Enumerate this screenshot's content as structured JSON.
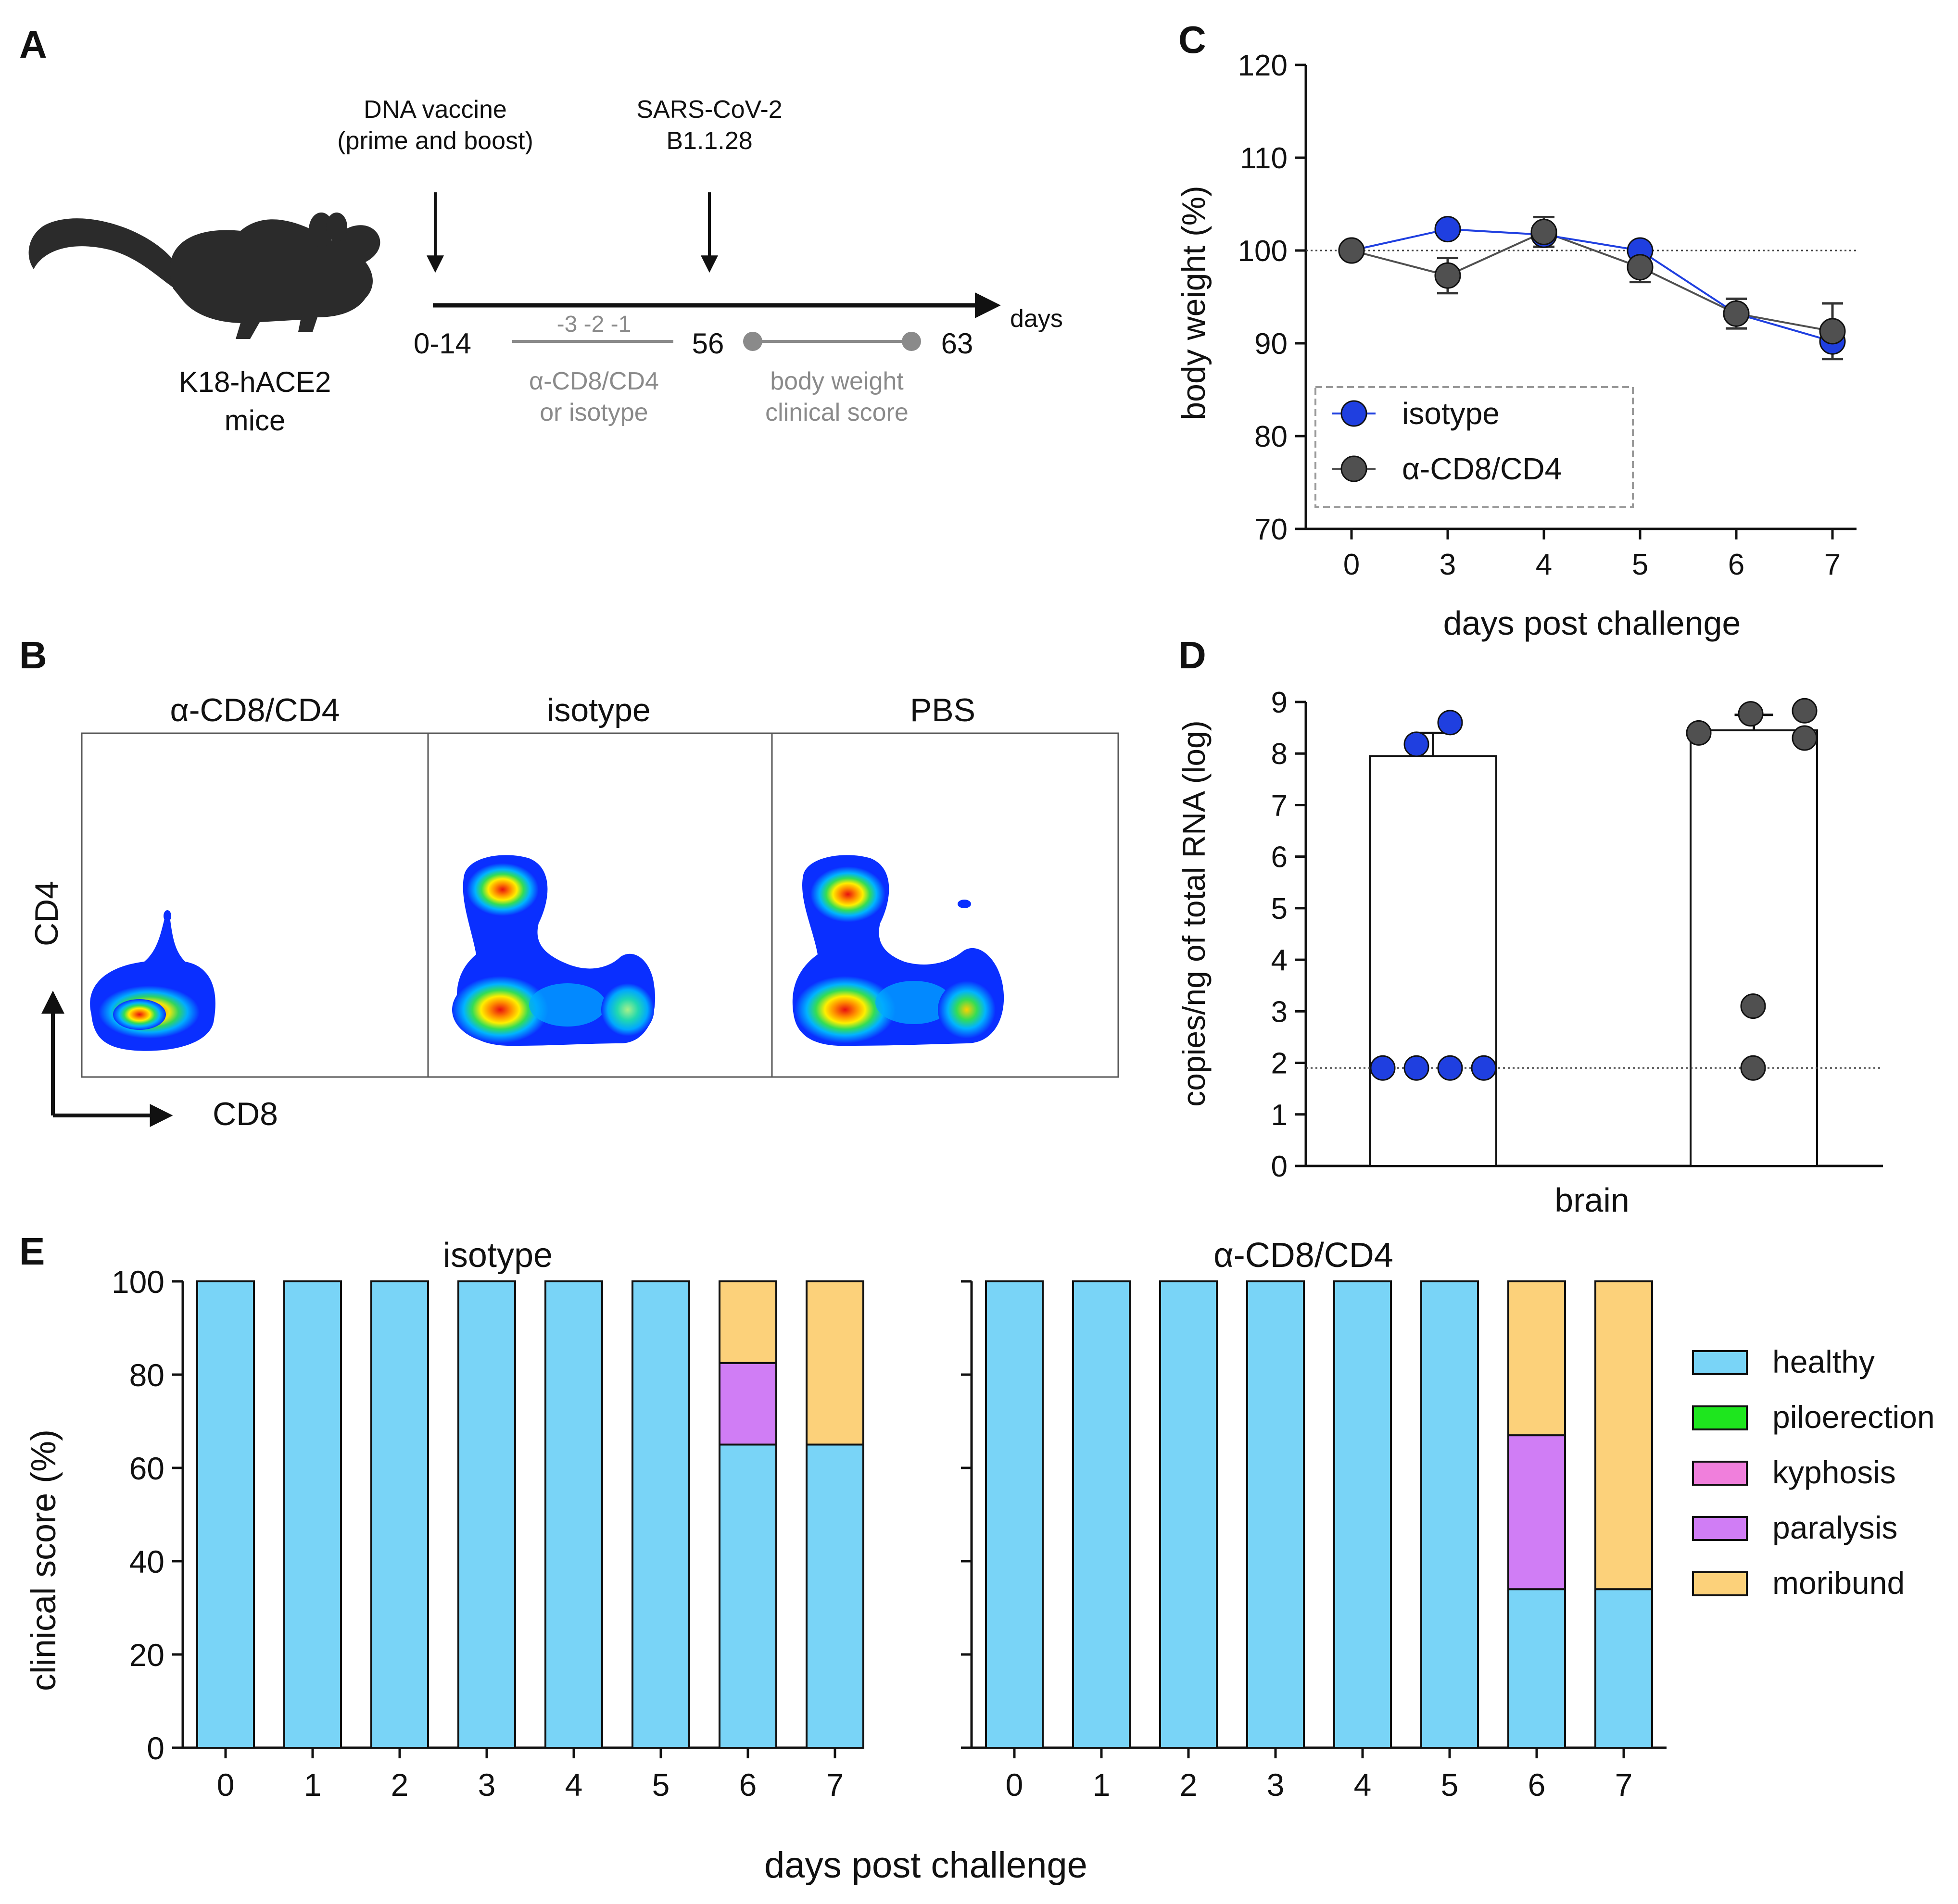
{
  "panel_labels": {
    "A": "A",
    "B": "B",
    "C": "C",
    "D": "D",
    "E": "E"
  },
  "colors": {
    "isotype": "#1f3fe0",
    "anti_cd8_cd4": "#505050",
    "healthy": "#79d4f7",
    "piloerection": "#1ee61e",
    "kyphosis": "#f07fdc",
    "paralysis": "#d07df5",
    "moribund": "#fcd17a",
    "timeline_gray": "#8a8a8a"
  },
  "panel_a": {
    "mouse_icon": "mouse-icon",
    "mouse_line1": "K18-hACE2",
    "mouse_line2": "mice",
    "vaccine_line1": "DNA vaccine",
    "vaccine_line2": "(prime and boost)",
    "challenge_line1": "SARS-CoV-2",
    "challenge_line2": "B1.1.28",
    "days_label": "days",
    "day_vaccine": "0-14",
    "day_challenge": "56",
    "day_end": "63",
    "depletion_days": "-3 -2 -1",
    "depletion_line1": "α-CD8/CD4",
    "depletion_line2": "or isotype",
    "monitor_line1": "body weight",
    "monitor_line2": "clinical score"
  },
  "panel_b": {
    "panels": [
      "α-CD8/CD4",
      "isotype",
      "PBS"
    ],
    "y_axis": "CD4",
    "x_axis": "CD8"
  },
  "chart_data": [
    {
      "id": "C",
      "type": "line",
      "title": "",
      "xlabel": "days post challenge",
      "ylabel": "body weight (%)",
      "categories": [
        "0",
        "3",
        "4",
        "5",
        "6",
        "7"
      ],
      "ylim": [
        70,
        120
      ],
      "yticks": [
        70,
        80,
        90,
        100,
        110,
        120
      ],
      "reference_line": 100,
      "legend": "top-left",
      "series": [
        {
          "name": "isotype",
          "color": "#1f3fe0",
          "values": [
            100,
            102.3,
            101.7,
            100.0,
            93.2,
            90.2
          ],
          "errors": [
            0,
            0,
            0,
            0,
            0,
            0
          ]
        },
        {
          "name": "α-CD8/CD4",
          "color": "#505050",
          "values": [
            100,
            97.3,
            102.0,
            98.2,
            93.2,
            91.3
          ],
          "errors": [
            0,
            1.9,
            1.6,
            1.6,
            1.6,
            3.0
          ]
        }
      ]
    },
    {
      "id": "D",
      "type": "bar",
      "xlabel": "brain",
      "ylabel": "copies/ng of total RNA (log)",
      "ylim": [
        0,
        9
      ],
      "yticks": [
        0,
        1,
        2,
        3,
        4,
        5,
        6,
        7,
        8,
        9
      ],
      "detection_limit": 1.9,
      "groups": [
        {
          "name": "isotype",
          "color": "#1f3fe0",
          "mean": 7.95,
          "error": 0.45,
          "points": [
            8.18,
            8.6,
            1.9,
            1.9,
            1.9,
            1.9
          ]
        },
        {
          "name": "α-CD8/CD4",
          "color": "#505050",
          "mean": 8.45,
          "error": 0.3,
          "points": [
            8.4,
            8.77,
            8.83,
            8.3,
            3.1,
            1.9
          ]
        }
      ]
    },
    {
      "id": "E",
      "type": "bar",
      "stacked": true,
      "xlabel": "days post challenge",
      "ylabel": "clinical score (%)",
      "ylim": [
        0,
        100
      ],
      "yticks": [
        0,
        20,
        40,
        60,
        80,
        100
      ],
      "legend": "right",
      "legend_entries": [
        "healthy",
        "piloerection",
        "kyphosis",
        "paralysis",
        "moribund"
      ],
      "categories": [
        "0",
        "1",
        "2",
        "3",
        "4",
        "5",
        "6",
        "7"
      ],
      "panels": [
        {
          "title": "isotype",
          "series": [
            {
              "name": "healthy",
              "values": [
                100,
                100,
                100,
                100,
                100,
                100,
                65,
                65
              ]
            },
            {
              "name": "piloerection",
              "values": [
                0,
                0,
                0,
                0,
                0,
                0,
                0,
                0
              ]
            },
            {
              "name": "kyphosis",
              "values": [
                0,
                0,
                0,
                0,
                0,
                0,
                0,
                0
              ]
            },
            {
              "name": "paralysis",
              "values": [
                0,
                0,
                0,
                0,
                0,
                0,
                17.5,
                0
              ]
            },
            {
              "name": "moribund",
              "values": [
                0,
                0,
                0,
                0,
                0,
                0,
                17.5,
                35
              ]
            }
          ]
        },
        {
          "title": "α-CD8/CD4",
          "series": [
            {
              "name": "healthy",
              "values": [
                100,
                100,
                100,
                100,
                100,
                100,
                34,
                34
              ]
            },
            {
              "name": "piloerection",
              "values": [
                0,
                0,
                0,
                0,
                0,
                0,
                0,
                0
              ]
            },
            {
              "name": "kyphosis",
              "values": [
                0,
                0,
                0,
                0,
                0,
                0,
                0,
                0
              ]
            },
            {
              "name": "paralysis",
              "values": [
                0,
                0,
                0,
                0,
                0,
                0,
                33,
                0
              ]
            },
            {
              "name": "moribund",
              "values": [
                0,
                0,
                0,
                0,
                0,
                0,
                33,
                66
              ]
            }
          ]
        }
      ]
    }
  ]
}
